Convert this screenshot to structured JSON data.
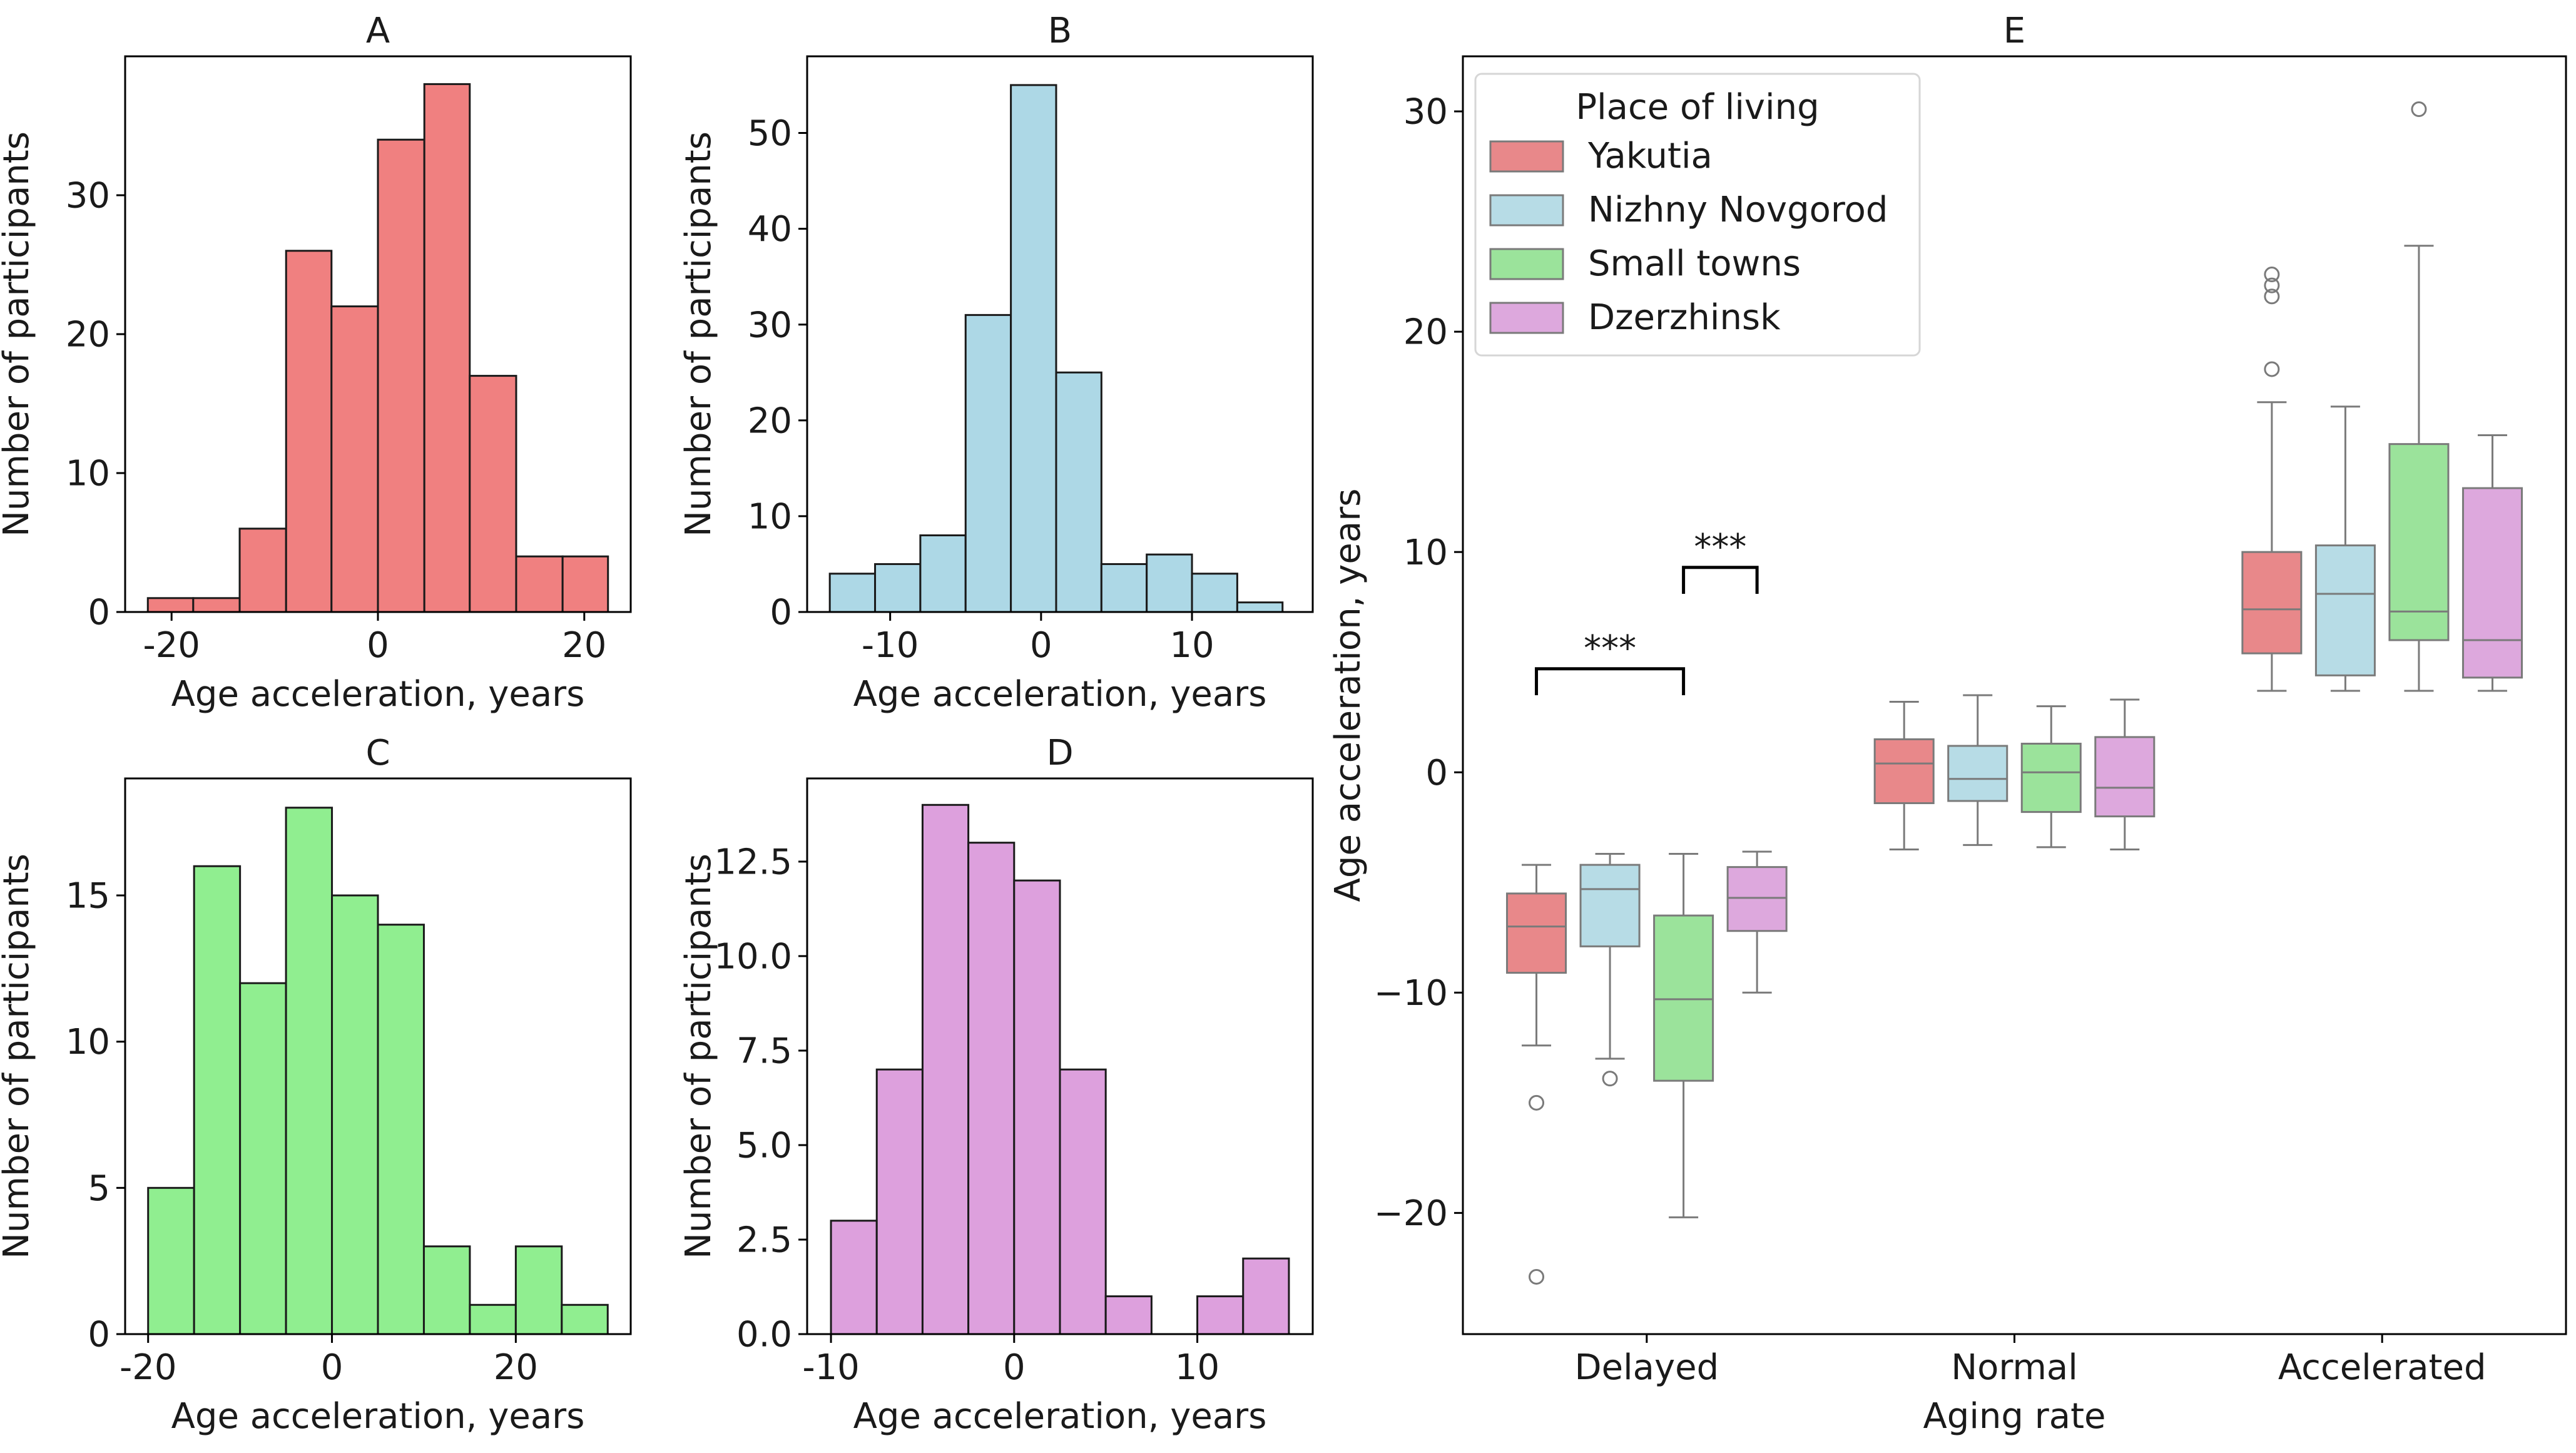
{
  "chart_data": [
    {
      "id": "A",
      "type": "bar",
      "title": "A",
      "xlabel": "Age acceleration, years",
      "ylabel": "Number of participants",
      "color": "#F08080",
      "xlim": [
        -24.5,
        24.5
      ],
      "ylim": [
        0,
        40
      ],
      "xticks": [
        "-20",
        "0",
        "20"
      ],
      "xtick_values": [
        -20,
        0,
        20
      ],
      "yticks": [
        "0",
        "10",
        "20",
        "30"
      ],
      "ytick_values": [
        0,
        10,
        20,
        30
      ],
      "bin_edges": [
        -22.3,
        -17.9,
        -13.4,
        -8.9,
        -4.5,
        0,
        4.5,
        8.9,
        13.4,
        17.9,
        22.3
      ],
      "values": [
        1,
        1,
        6,
        26,
        22,
        34,
        38,
        17,
        4,
        4
      ]
    },
    {
      "id": "B",
      "type": "bar",
      "title": "B",
      "xlabel": "Age acceleration, years",
      "ylabel": "Number of participants",
      "color": "#ADD8E6",
      "xlim": [
        -15.5,
        18
      ],
      "ylim": [
        0,
        58
      ],
      "xticks": [
        "-10",
        "0",
        "10"
      ],
      "xtick_values": [
        -10,
        0,
        10
      ],
      "yticks": [
        "0",
        "10",
        "20",
        "30",
        "40",
        "50"
      ],
      "ytick_values": [
        0,
        10,
        20,
        30,
        40,
        50
      ],
      "bin_edges": [
        -14,
        -11,
        -8,
        -5,
        -2,
        1,
        4,
        7,
        10,
        13,
        16
      ],
      "values": [
        4,
        5,
        8,
        31,
        55,
        25,
        5,
        6,
        4,
        1
      ]
    },
    {
      "id": "C",
      "type": "bar",
      "title": "C",
      "xlabel": "Age acceleration, years",
      "ylabel": "Number of participants",
      "color": "#90EE90",
      "xlim": [
        -22.5,
        32.5
      ],
      "ylim": [
        0,
        19
      ],
      "xticks": [
        "-20",
        "0",
        "20"
      ],
      "xtick_values": [
        -20,
        0,
        20
      ],
      "yticks": [
        "0",
        "5",
        "10",
        "15"
      ],
      "ytick_values": [
        0,
        5,
        10,
        15
      ],
      "bin_edges": [
        -20,
        -15,
        -10,
        -5,
        0,
        5,
        10,
        15,
        20,
        25,
        30
      ],
      "values": [
        5,
        16,
        12,
        18,
        15,
        14,
        3,
        1,
        3,
        1
      ]
    },
    {
      "id": "D",
      "type": "bar",
      "title": "D",
      "xlabel": "Age acceleration, years",
      "ylabel": "Number of participants",
      "color": "#DDA0DD",
      "xlim": [
        -11.3,
        16.3
      ],
      "ylim": [
        0,
        14.7
      ],
      "xticks": [
        "-10",
        "0",
        "10"
      ],
      "xtick_values": [
        -10,
        0,
        10
      ],
      "yticks": [
        "0.0",
        "2.5",
        "5.0",
        "7.5",
        "10.0",
        "12.5"
      ],
      "ytick_values": [
        0,
        2.5,
        5,
        7.5,
        10,
        12.5
      ],
      "bin_edges": [
        -10,
        -7.5,
        -5,
        -2.5,
        0,
        2.5,
        5,
        7.5,
        10,
        12.5,
        15
      ],
      "values": [
        3,
        7,
        14,
        13,
        12,
        7,
        1,
        0,
        1,
        2
      ]
    },
    {
      "id": "E",
      "type": "boxplot",
      "title": "E",
      "xlabel": "Aging rate",
      "ylabel": "Age acceleration, years",
      "categories": [
        "Delayed",
        "Normal",
        "Accelerated"
      ],
      "ylim": [
        -25.5,
        32.5
      ],
      "yticks": [
        "−20",
        "−10",
        "0",
        "10",
        "20",
        "30"
      ],
      "ytick_values": [
        -20,
        -10,
        0,
        10,
        20,
        30
      ],
      "legend": {
        "title": "Place of living",
        "position": "upper-left"
      },
      "series": [
        {
          "name": "Yakutia",
          "color": "#E8888A",
          "boxes": [
            {
              "q1": -9.1,
              "median": -7.0,
              "q3": -5.5,
              "whisker_low": -12.4,
              "whisker_high": -4.2,
              "outliers": [
                -15.0,
                -22.9
              ]
            },
            {
              "q1": -1.4,
              "median": 0.4,
              "q3": 1.5,
              "whisker_low": -3.5,
              "whisker_high": 3.2,
              "outliers": []
            },
            {
              "q1": 5.4,
              "median": 7.4,
              "q3": 10.0,
              "whisker_low": 3.7,
              "whisker_high": 16.8,
              "outliers": [
                18.3,
                21.6,
                22.1,
                22.6
              ]
            }
          ]
        },
        {
          "name": "Nizhny Novgorod",
          "color": "#B7DCE6",
          "boxes": [
            {
              "q1": -7.9,
              "median": -5.3,
              "q3": -4.2,
              "whisker_low": -13.0,
              "whisker_high": -3.7,
              "outliers": [
                -13.9
              ]
            },
            {
              "q1": -1.3,
              "median": -0.3,
              "q3": 1.2,
              "whisker_low": -3.3,
              "whisker_high": 3.5,
              "outliers": []
            },
            {
              "q1": 4.4,
              "median": 8.1,
              "q3": 10.3,
              "whisker_low": 3.7,
              "whisker_high": 16.6,
              "outliers": []
            }
          ]
        },
        {
          "name": "Small towns",
          "color": "#9BE39B",
          "boxes": [
            {
              "q1": -14.0,
              "median": -10.3,
              "q3": -6.5,
              "whisker_low": -20.2,
              "whisker_high": -3.7,
              "outliers": []
            },
            {
              "q1": -1.8,
              "median": 0.0,
              "q3": 1.3,
              "whisker_low": -3.4,
              "whisker_high": 3.0,
              "outliers": []
            },
            {
              "q1": 6.0,
              "median": 7.3,
              "q3": 14.9,
              "whisker_low": 3.7,
              "whisker_high": 23.9,
              "outliers": [
                30.1
              ]
            }
          ]
        },
        {
          "name": "Dzerzhinsk",
          "color": "#DDA8DD",
          "boxes": [
            {
              "q1": -7.2,
              "median": -5.7,
              "q3": -4.3,
              "whisker_low": -10.0,
              "whisker_high": -3.6,
              "outliers": []
            },
            {
              "q1": -2.0,
              "median": -0.7,
              "q3": 1.6,
              "whisker_low": -3.5,
              "whisker_high": 3.3,
              "outliers": []
            },
            {
              "q1": 4.3,
              "median": 6.0,
              "q3": 12.9,
              "whisker_low": 3.7,
              "whisker_high": 15.3,
              "outliers": []
            }
          ]
        }
      ],
      "annotations": [
        {
          "label": "***",
          "category": "Delayed",
          "from_series": 0,
          "to_series": 2,
          "y_bracket": 4.7,
          "y_drop": 3.5
        },
        {
          "label": "***",
          "category": "Delayed",
          "from_series": 2,
          "to_series": 3,
          "y_bracket": 9.3,
          "y_drop": 8.1
        }
      ]
    }
  ]
}
